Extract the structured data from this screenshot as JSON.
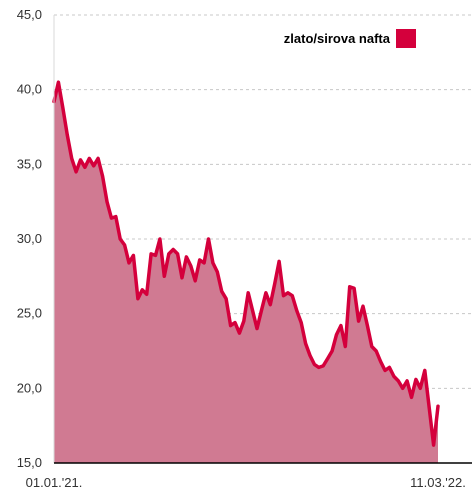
{
  "chart_data": {
    "type": "area",
    "series": [
      {
        "name": "zlato/sirova nafta",
        "color": "#d4003c",
        "fill_color": "#d07a92",
        "values": [
          39.2,
          40.5,
          38.8,
          37.0,
          35.4,
          34.5,
          35.3,
          34.8,
          35.4,
          34.9,
          35.4,
          34.2,
          32.5,
          31.4,
          31.5,
          30.0,
          29.6,
          28.4,
          28.9,
          26.0,
          26.6,
          26.3,
          29.0,
          28.9,
          30.0,
          27.5,
          29.0,
          29.3,
          29.0,
          27.4,
          28.8,
          28.2,
          27.2,
          28.6,
          28.4,
          30.0,
          28.4,
          27.8,
          26.5,
          26.0,
          24.2,
          24.4,
          23.7,
          24.5,
          26.4,
          25.2,
          24.0,
          25.2,
          26.4,
          25.6,
          27.0,
          28.5,
          26.2,
          26.4,
          26.2,
          25.2,
          24.4,
          23.0,
          22.2,
          21.6,
          21.4,
          21.5,
          22.0,
          22.5,
          23.6,
          24.2,
          22.8,
          26.8,
          26.7,
          24.5,
          25.5,
          24.2,
          22.8,
          22.5,
          21.8,
          21.2,
          21.4,
          20.8,
          20.5,
          20.0,
          20.5,
          19.4,
          20.6,
          20.0,
          21.2,
          18.7,
          16.2,
          18.8
        ]
      }
    ],
    "x_labels": [
      "01.01.'21.",
      "11.03.'22."
    ],
    "y_ticks": [
      "15,0",
      "20,0",
      "25,0",
      "30,0",
      "35,0",
      "40,0",
      "45,0"
    ],
    "ylim": [
      15,
      45
    ],
    "y_tick_step": 5,
    "grid": "horizontal-dashed",
    "legend_position": "top-right",
    "title": "",
    "xlabel": "",
    "ylabel": ""
  }
}
